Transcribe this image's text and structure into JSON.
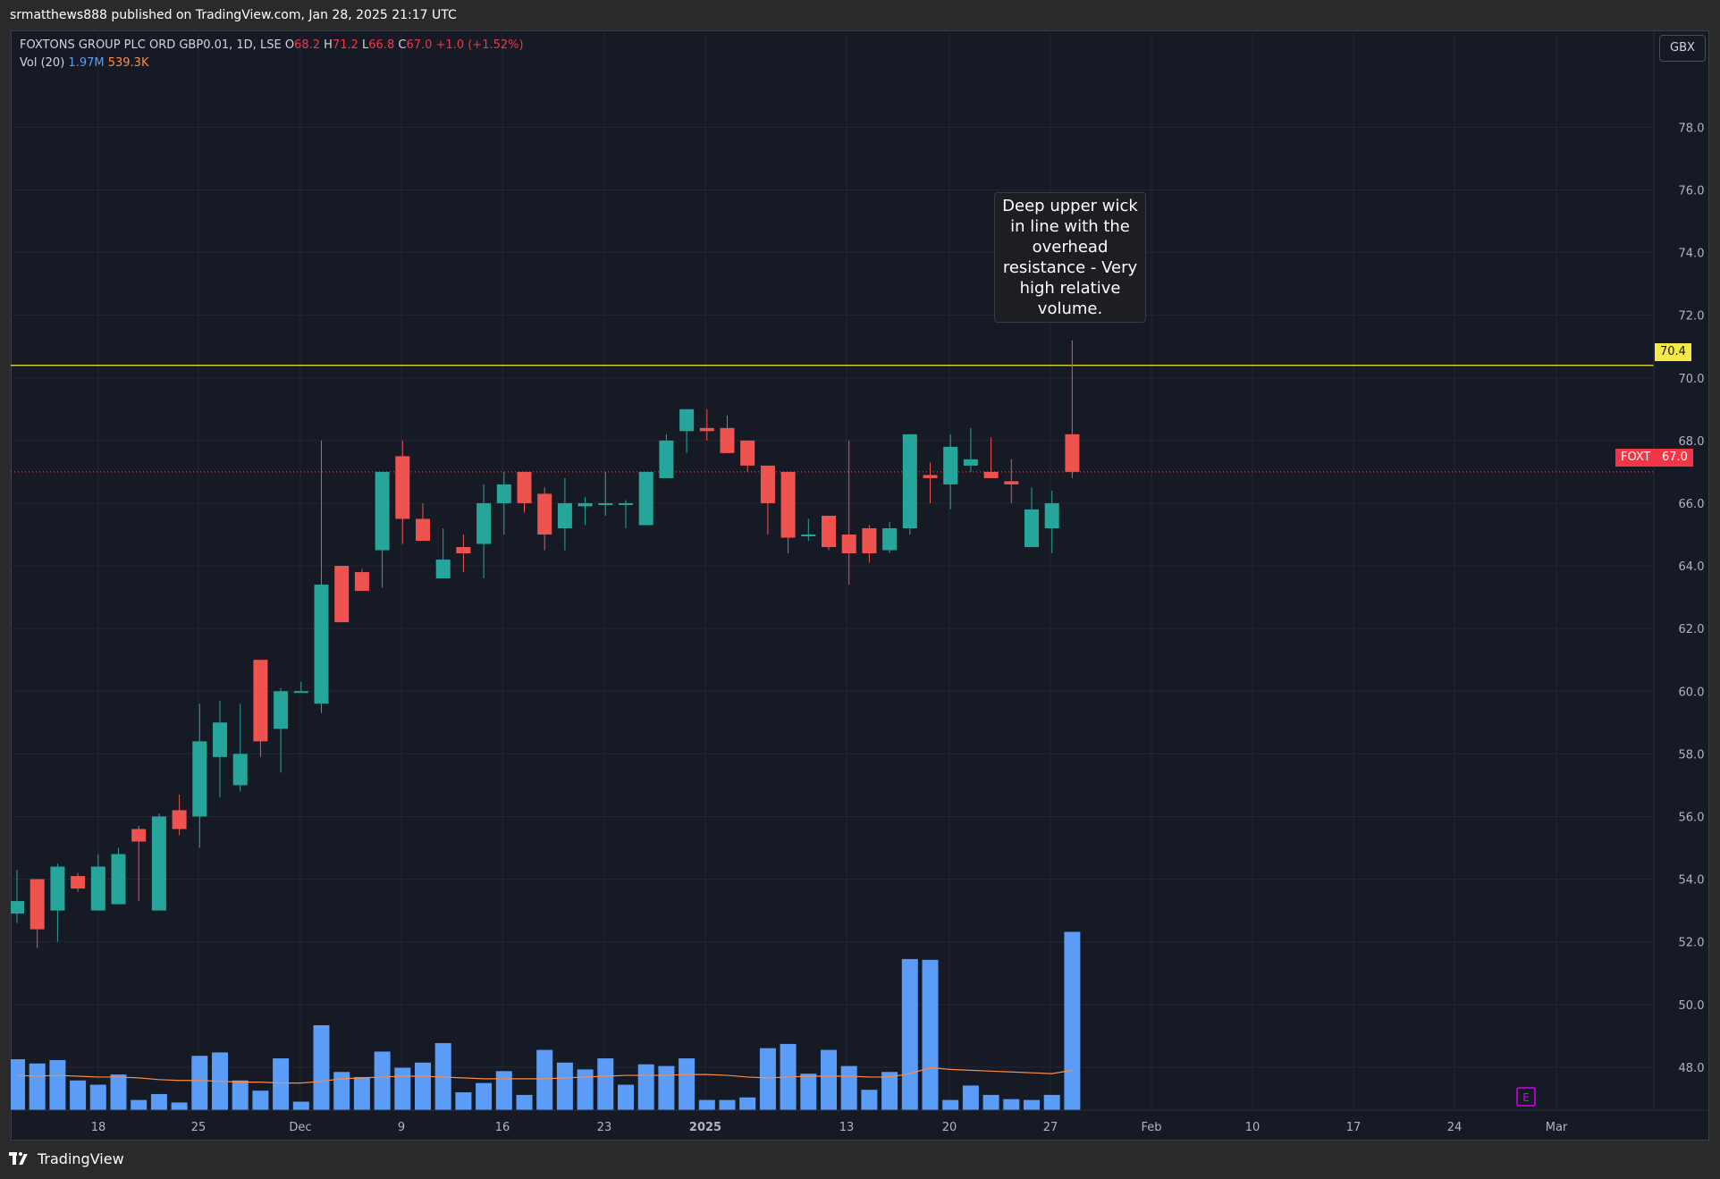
{
  "header": {
    "published": "srmatthews888 published on TradingView.com, Jan 28, 2025 21:17 UTC"
  },
  "legend": {
    "instrument": "FOXTONS GROUP PLC ORD GBP0.01, 1D, LSE",
    "o_label": "O",
    "o_value": "68.2",
    "h_label": "H",
    "h_value": "71.2",
    "l_label": "L",
    "l_value": "66.8",
    "c_label": "C",
    "c_value": "67.0",
    "change": "+1.0 (+1.52%)",
    "vol_label": "Vol (20)",
    "vol_value": "1.97M",
    "vol_ma_value": "539.3K"
  },
  "currency": "GBX",
  "annotation": "Deep upper wick in line with the overhead resistance - Very high relative volume.",
  "price_tags": {
    "resistance": "70.4",
    "symbol": "FOXT",
    "last": "67.0"
  },
  "footer": {
    "brand": "TradingView"
  },
  "earnings_marker": "E",
  "colors": {
    "background": "#161a25",
    "up": "#26a69a",
    "down": "#ef5350",
    "volume": "#5b9cf6",
    "volume_ma": "#ff8c42",
    "resistance": "#f5e94a",
    "grid": "#232733",
    "axis_text": "#b2b5be"
  },
  "chart_data": {
    "type": "candlestick",
    "symbol": "FOXT",
    "interval": "1D",
    "y_axis": {
      "min": 46.4,
      "max": 80.0,
      "ticks": [
        48.0,
        50.0,
        52.0,
        54.0,
        56.0,
        58.0,
        60.0,
        62.0,
        64.0,
        66.0,
        68.0,
        70.0,
        72.0,
        74.0,
        76.0,
        78.0
      ]
    },
    "x_axis_labels": [
      "18",
      "25",
      "Dec",
      "9",
      "16",
      "23",
      "2025",
      "13",
      "20",
      "27",
      "Feb",
      "10",
      "17",
      "24",
      "Mar"
    ],
    "resistance_level": 70.4,
    "last_price": 67.0,
    "candles": [
      {
        "o": 52.9,
        "h": 54.3,
        "l": 52.6,
        "c": 53.3
      },
      {
        "o": 54.0,
        "h": 54.0,
        "l": 51.8,
        "c": 52.4
      },
      {
        "o": 53.0,
        "h": 54.5,
        "l": 52.0,
        "c": 54.4
      },
      {
        "o": 54.1,
        "h": 54.2,
        "l": 53.6,
        "c": 53.7
      },
      {
        "o": 53.0,
        "h": 54.8,
        "l": 53.0,
        "c": 54.4
      },
      {
        "o": 53.2,
        "h": 55.0,
        "l": 53.2,
        "c": 54.8
      },
      {
        "o": 55.6,
        "h": 55.7,
        "l": 53.3,
        "c": 55.2
      },
      {
        "o": 53.0,
        "h": 56.1,
        "l": 53.0,
        "c": 56.0
      },
      {
        "o": 56.2,
        "h": 56.7,
        "l": 55.4,
        "c": 55.6
      },
      {
        "o": 56.0,
        "h": 59.6,
        "l": 55.0,
        "c": 58.4
      },
      {
        "o": 57.9,
        "h": 59.7,
        "l": 56.6,
        "c": 59.0
      },
      {
        "o": 57.0,
        "h": 59.6,
        "l": 56.8,
        "c": 58.0
      },
      {
        "o": 61.0,
        "h": 61.0,
        "l": 57.9,
        "c": 58.4
      },
      {
        "o": 58.8,
        "h": 60.1,
        "l": 57.4,
        "c": 60.0
      },
      {
        "o": 60.0,
        "h": 60.3,
        "l": 60.0,
        "c": 60.0
      },
      {
        "o": 59.6,
        "h": 68.0,
        "l": 59.3,
        "c": 63.4
      },
      {
        "o": 64.0,
        "h": 64.0,
        "l": 62.2,
        "c": 62.2
      },
      {
        "o": 63.8,
        "h": 63.9,
        "l": 63.2,
        "c": 63.2
      },
      {
        "o": 64.5,
        "h": 67.0,
        "l": 63.3,
        "c": 67.0
      },
      {
        "o": 67.5,
        "h": 68.0,
        "l": 64.7,
        "c": 65.5
      },
      {
        "o": 65.5,
        "h": 66.0,
        "l": 64.8,
        "c": 64.8
      },
      {
        "o": 63.6,
        "h": 65.2,
        "l": 63.6,
        "c": 64.2
      },
      {
        "o": 64.6,
        "h": 65.0,
        "l": 63.8,
        "c": 64.4
      },
      {
        "o": 64.7,
        "h": 66.6,
        "l": 63.6,
        "c": 66.0
      },
      {
        "o": 66.0,
        "h": 67.0,
        "l": 65.0,
        "c": 66.6
      },
      {
        "o": 67.0,
        "h": 67.0,
        "l": 65.7,
        "c": 66.0
      },
      {
        "o": 66.3,
        "h": 66.5,
        "l": 64.5,
        "c": 65.0
      },
      {
        "o": 65.2,
        "h": 66.8,
        "l": 64.5,
        "c": 66.0
      },
      {
        "o": 65.9,
        "h": 66.2,
        "l": 65.3,
        "c": 66.0
      },
      {
        "o": 66.0,
        "h": 67.0,
        "l": 65.6,
        "c": 66.0
      },
      {
        "o": 66.0,
        "h": 66.1,
        "l": 65.2,
        "c": 66.0
      },
      {
        "o": 65.3,
        "h": 67.0,
        "l": 65.3,
        "c": 67.0
      },
      {
        "o": 66.8,
        "h": 68.2,
        "l": 66.8,
        "c": 68.0
      },
      {
        "o": 68.3,
        "h": 69.0,
        "l": 67.6,
        "c": 69.0
      },
      {
        "o": 68.4,
        "h": 69.0,
        "l": 68.0,
        "c": 68.3
      },
      {
        "o": 68.4,
        "h": 68.8,
        "l": 67.7,
        "c": 67.6
      },
      {
        "o": 68.0,
        "h": 68.0,
        "l": 67.0,
        "c": 67.2
      },
      {
        "o": 67.2,
        "h": 67.2,
        "l": 65.0,
        "c": 66.0
      },
      {
        "o": 67.0,
        "h": 67.0,
        "l": 64.4,
        "c": 64.9
      },
      {
        "o": 65.0,
        "h": 65.5,
        "l": 64.8,
        "c": 65.0
      },
      {
        "o": 65.6,
        "h": 65.6,
        "l": 64.5,
        "c": 64.6
      },
      {
        "o": 65.0,
        "h": 68.0,
        "l": 63.4,
        "c": 64.4
      },
      {
        "o": 65.2,
        "h": 65.3,
        "l": 64.1,
        "c": 64.4
      },
      {
        "o": 64.5,
        "h": 65.4,
        "l": 64.4,
        "c": 65.2
      },
      {
        "o": 65.2,
        "h": 68.2,
        "l": 65.0,
        "c": 68.2
      },
      {
        "o": 66.9,
        "h": 67.3,
        "l": 66.0,
        "c": 66.8
      },
      {
        "o": 66.6,
        "h": 68.2,
        "l": 65.8,
        "c": 67.8
      },
      {
        "o": 67.2,
        "h": 68.4,
        "l": 67.0,
        "c": 67.4
      },
      {
        "o": 67.0,
        "h": 68.1,
        "l": 66.8,
        "c": 66.8
      },
      {
        "o": 66.7,
        "h": 67.4,
        "l": 66.0,
        "c": 66.6
      },
      {
        "o": 64.6,
        "h": 66.5,
        "l": 64.6,
        "c": 65.8
      },
      {
        "o": 65.2,
        "h": 66.4,
        "l": 64.4,
        "c": 66.0
      },
      {
        "o": 68.2,
        "h": 71.2,
        "l": 66.8,
        "c": 67.0
      }
    ],
    "volume_relative": [
      0.6,
      0.55,
      0.59,
      0.35,
      0.3,
      0.42,
      0.12,
      0.19,
      0.09,
      0.64,
      0.68,
      0.35,
      0.23,
      0.61,
      0.1,
      1.0,
      0.45,
      0.39,
      0.69,
      0.5,
      0.56,
      0.79,
      0.21,
      0.32,
      0.46,
      0.18,
      0.71,
      0.56,
      0.48,
      0.61,
      0.3,
      0.54,
      0.52,
      0.61,
      0.12,
      0.12,
      0.15,
      0.73,
      0.78,
      0.43,
      0.71,
      0.52,
      0.24,
      0.45,
      1.78,
      1.77,
      0.12,
      0.29,
      0.18,
      0.13,
      0.12,
      0.18,
      2.1
    ],
    "volume_ma_relative": [
      0.41,
      0.4,
      0.41,
      0.4,
      0.39,
      0.39,
      0.38,
      0.36,
      0.35,
      0.35,
      0.34,
      0.33,
      0.33,
      0.32,
      0.32,
      0.34,
      0.37,
      0.38,
      0.39,
      0.4,
      0.4,
      0.39,
      0.38,
      0.37,
      0.37,
      0.37,
      0.37,
      0.38,
      0.39,
      0.4,
      0.41,
      0.41,
      0.41,
      0.42,
      0.42,
      0.41,
      0.39,
      0.38,
      0.39,
      0.4,
      0.4,
      0.4,
      0.39,
      0.39,
      0.43,
      0.5,
      0.48,
      0.47,
      0.46,
      0.45,
      0.44,
      0.43,
      0.47
    ]
  }
}
